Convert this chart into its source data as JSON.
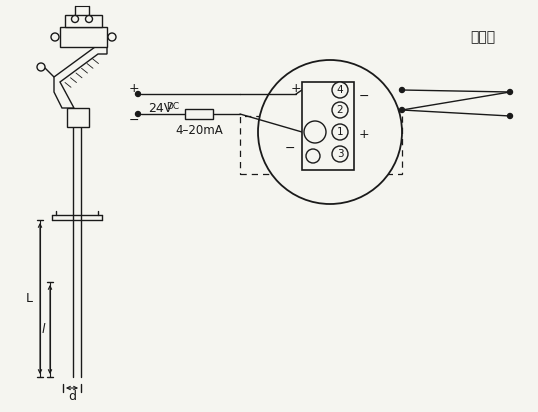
{
  "bg_color": "#f5f5f0",
  "line_color": "#1a1a1a",
  "text_color": "#1a1a1a",
  "label_24v": "24V",
  "label_dc": "DC",
  "label_4_20ma": "4–20mA",
  "label_hotcouple": "热电偶",
  "label_d": "d",
  "label_L": "L",
  "label_l": "l"
}
